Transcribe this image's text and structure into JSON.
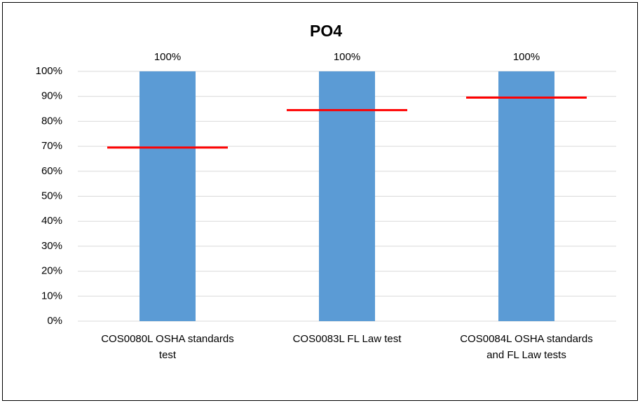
{
  "chart_data": {
    "type": "bar",
    "title": "PO4",
    "categories": [
      "COS0080L OSHA standards test",
      "COS0083L FL Law test",
      "COS0084L OSHA standards and FL Law tests"
    ],
    "series": [
      {
        "color": "#5b9bd5",
        "values": [
          100,
          100,
          100
        ],
        "value_labels": [
          "100%",
          "100%",
          "100%"
        ]
      },
      {
        "color": "#ff0000",
        "values": [
          69.5,
          84.5,
          89.5
        ]
      }
    ],
    "ylim": [
      0,
      100
    ],
    "yticks": [
      {
        "value": 0,
        "label": "0%"
      },
      {
        "value": 10,
        "label": "10%"
      },
      {
        "value": 20,
        "label": "20%"
      },
      {
        "value": 30,
        "label": "30%"
      },
      {
        "value": 40,
        "label": "40%"
      },
      {
        "value": 50,
        "label": "50%"
      },
      {
        "value": 60,
        "label": "60%"
      },
      {
        "value": 70,
        "label": "70%"
      },
      {
        "value": 80,
        "label": "80%"
      },
      {
        "value": 90,
        "label": "90%"
      },
      {
        "value": 100,
        "label": "100%"
      }
    ],
    "grid": true
  }
}
